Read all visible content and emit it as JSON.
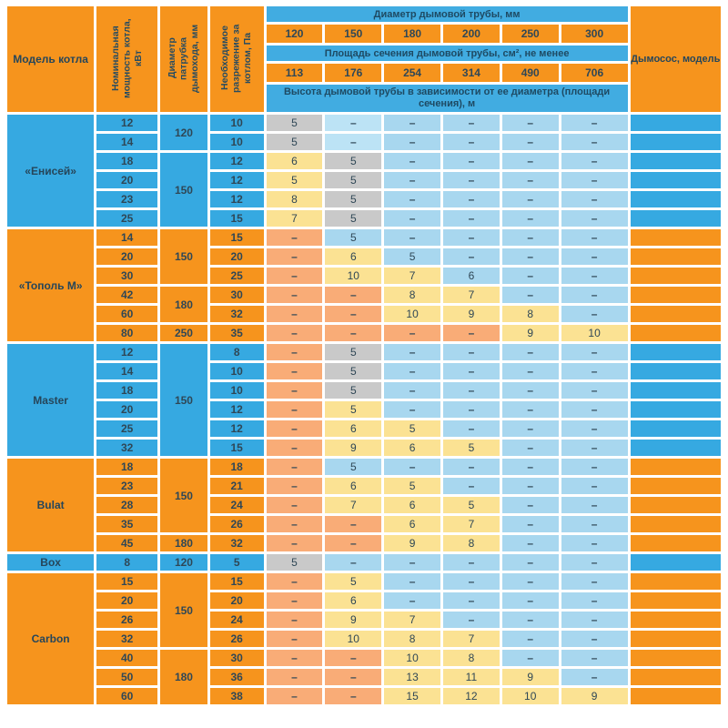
{
  "colors": {
    "orange": "#F6941D",
    "blue": "#36A9E1",
    "banner_blue": "#41ACE1",
    "light_blue": "#A8D7EF",
    "pale_blue": "#BCE3F5",
    "yellow": "#FBE293",
    "grey": "#C9C9C9",
    "light_orange": "#F9AC77"
  },
  "chart_data": {
    "type": "table",
    "header": {
      "col_model": "Модель котла",
      "col_power": "Номинальная мощность котла, кВт",
      "col_duct": "Диаметр патрубка дымохода, мм",
      "col_draft": "Необходимое разрежение за котлом, Па",
      "banner_diameter": "Диаметр дымовой трубы, мм",
      "diameters": [
        "120",
        "150",
        "180",
        "200",
        "250",
        "300"
      ],
      "banner_area": "Площадь сечения дымовой трубы, см², не менее",
      "areas": [
        "113",
        "176",
        "254",
        "314",
        "490",
        "706"
      ],
      "banner_height": "Высота дымовой трубы в зависимости от ее диаметра (площади сечения), м",
      "col_exhauster": "Дымосос, модель"
    },
    "dash": "–",
    "groups": [
      {
        "model": "«Енисей»",
        "color": "blue",
        "rows": [
          {
            "power": "12",
            "duct": "120",
            "duct_span": 2,
            "draft": "10",
            "values": [
              [
                "5",
                "g"
              ],
              [
                "–",
                "bl"
              ],
              [
                "–",
                "b"
              ],
              [
                "–",
                "b"
              ],
              [
                "–",
                "b"
              ],
              [
                "–",
                "b"
              ]
            ]
          },
          {
            "power": "14",
            "draft": "10",
            "values": [
              [
                "5",
                "g"
              ],
              [
                "–",
                "bl"
              ],
              [
                "–",
                "b"
              ],
              [
                "–",
                "b"
              ],
              [
                "–",
                "b"
              ],
              [
                "–",
                "b"
              ]
            ]
          },
          {
            "power": "18",
            "duct": "150",
            "duct_span": 4,
            "draft": "12",
            "values": [
              [
                "6",
                "y"
              ],
              [
                "5",
                "g"
              ],
              [
                "–",
                "b"
              ],
              [
                "–",
                "b"
              ],
              [
                "–",
                "b"
              ],
              [
                "–",
                "b"
              ]
            ]
          },
          {
            "power": "20",
            "draft": "12",
            "values": [
              [
                "5",
                "y"
              ],
              [
                "5",
                "g"
              ],
              [
                "–",
                "b"
              ],
              [
                "–",
                "b"
              ],
              [
                "–",
                "b"
              ],
              [
                "–",
                "b"
              ]
            ]
          },
          {
            "power": "23",
            "draft": "12",
            "values": [
              [
                "8",
                "y"
              ],
              [
                "5",
                "g"
              ],
              [
                "–",
                "b"
              ],
              [
                "–",
                "b"
              ],
              [
                "–",
                "b"
              ],
              [
                "–",
                "b"
              ]
            ]
          },
          {
            "power": "25",
            "draft": "15",
            "values": [
              [
                "7",
                "y"
              ],
              [
                "5",
                "g"
              ],
              [
                "–",
                "b"
              ],
              [
                "–",
                "b"
              ],
              [
                "–",
                "b"
              ],
              [
                "–",
                "b"
              ]
            ]
          }
        ]
      },
      {
        "model": "«Тополь М»",
        "color": "orange",
        "rows": [
          {
            "power": "14",
            "duct": "150",
            "duct_span": 3,
            "draft": "15",
            "values": [
              [
                "–",
                "o"
              ],
              [
                "5",
                "b"
              ],
              [
                "–",
                "b"
              ],
              [
                "–",
                "b"
              ],
              [
                "–",
                "b"
              ],
              [
                "–",
                "b"
              ]
            ]
          },
          {
            "power": "20",
            "draft": "20",
            "values": [
              [
                "–",
                "o"
              ],
              [
                "6",
                "y"
              ],
              [
                "5",
                "b"
              ],
              [
                "–",
                "b"
              ],
              [
                "–",
                "b"
              ],
              [
                "–",
                "b"
              ]
            ]
          },
          {
            "power": "30",
            "draft": "25",
            "values": [
              [
                "–",
                "o"
              ],
              [
                "10",
                "y"
              ],
              [
                "7",
                "y"
              ],
              [
                "6",
                "b"
              ],
              [
                "–",
                "b"
              ],
              [
                "–",
                "b"
              ]
            ]
          },
          {
            "power": "42",
            "duct": "180",
            "duct_span": 2,
            "draft": "30",
            "values": [
              [
                "–",
                "o"
              ],
              [
                "–",
                "o"
              ],
              [
                "8",
                "y"
              ],
              [
                "7",
                "y"
              ],
              [
                "–",
                "b"
              ],
              [
                "–",
                "b"
              ]
            ]
          },
          {
            "power": "60",
            "draft": "32",
            "values": [
              [
                "–",
                "o"
              ],
              [
                "–",
                "o"
              ],
              [
                "10",
                "y"
              ],
              [
                "9",
                "y"
              ],
              [
                "8",
                "y"
              ],
              [
                "–",
                "b"
              ]
            ]
          },
          {
            "power": "80",
            "duct": "250",
            "duct_span": 1,
            "draft": "35",
            "values": [
              [
                "–",
                "o"
              ],
              [
                "–",
                "o"
              ],
              [
                "–",
                "o"
              ],
              [
                "–",
                "o"
              ],
              [
                "9",
                "y"
              ],
              [
                "10",
                "y"
              ]
            ]
          }
        ]
      },
      {
        "model": "Master",
        "color": "blue",
        "rows": [
          {
            "power": "12",
            "duct": "150",
            "duct_span": 6,
            "draft": "8",
            "values": [
              [
                "–",
                "o"
              ],
              [
                "5",
                "g"
              ],
              [
                "–",
                "b"
              ],
              [
                "–",
                "b"
              ],
              [
                "–",
                "b"
              ],
              [
                "–",
                "b"
              ]
            ]
          },
          {
            "power": "14",
            "draft": "10",
            "values": [
              [
                "–",
                "o"
              ],
              [
                "5",
                "g"
              ],
              [
                "–",
                "b"
              ],
              [
                "–",
                "b"
              ],
              [
                "–",
                "b"
              ],
              [
                "–",
                "b"
              ]
            ]
          },
          {
            "power": "18",
            "draft": "10",
            "values": [
              [
                "–",
                "o"
              ],
              [
                "5",
                "g"
              ],
              [
                "–",
                "b"
              ],
              [
                "–",
                "b"
              ],
              [
                "–",
                "b"
              ],
              [
                "–",
                "b"
              ]
            ]
          },
          {
            "power": "20",
            "draft": "12",
            "values": [
              [
                "–",
                "o"
              ],
              [
                "5",
                "y"
              ],
              [
                "–",
                "b"
              ],
              [
                "–",
                "b"
              ],
              [
                "–",
                "b"
              ],
              [
                "–",
                "b"
              ]
            ]
          },
          {
            "power": "25",
            "draft": "12",
            "values": [
              [
                "–",
                "o"
              ],
              [
                "6",
                "y"
              ],
              [
                "5",
                "y"
              ],
              [
                "–",
                "b"
              ],
              [
                "–",
                "b"
              ],
              [
                "–",
                "b"
              ]
            ]
          },
          {
            "power": "32",
            "draft": "15",
            "values": [
              [
                "–",
                "o"
              ],
              [
                "9",
                "y"
              ],
              [
                "6",
                "y"
              ],
              [
                "5",
                "y"
              ],
              [
                "–",
                "b"
              ],
              [
                "–",
                "b"
              ]
            ]
          }
        ]
      },
      {
        "model": "Bulat",
        "color": "orange",
        "rows": [
          {
            "power": "18",
            "duct": "150",
            "duct_span": 4,
            "draft": "18",
            "values": [
              [
                "–",
                "o"
              ],
              [
                "5",
                "b"
              ],
              [
                "–",
                "b"
              ],
              [
                "–",
                "b"
              ],
              [
                "–",
                "b"
              ],
              [
                "–",
                "b"
              ]
            ]
          },
          {
            "power": "23",
            "draft": "21",
            "values": [
              [
                "–",
                "o"
              ],
              [
                "6",
                "y"
              ],
              [
                "5",
                "y"
              ],
              [
                "–",
                "b"
              ],
              [
                "–",
                "b"
              ],
              [
                "–",
                "b"
              ]
            ]
          },
          {
            "power": "28",
            "draft": "24",
            "values": [
              [
                "–",
                "o"
              ],
              [
                "7",
                "y"
              ],
              [
                "6",
                "y"
              ],
              [
                "5",
                "y"
              ],
              [
                "–",
                "b"
              ],
              [
                "–",
                "b"
              ]
            ]
          },
          {
            "power": "35",
            "draft": "26",
            "values": [
              [
                "–",
                "o"
              ],
              [
                "–",
                "o"
              ],
              [
                "6",
                "y"
              ],
              [
                "7",
                "y"
              ],
              [
                "–",
                "b"
              ],
              [
                "–",
                "b"
              ]
            ]
          },
          {
            "power": "45",
            "duct": "180",
            "duct_span": 1,
            "draft": "32",
            "values": [
              [
                "–",
                "o"
              ],
              [
                "–",
                "o"
              ],
              [
                "9",
                "y"
              ],
              [
                "8",
                "y"
              ],
              [
                "–",
                "b"
              ],
              [
                "–",
                "b"
              ]
            ]
          }
        ]
      },
      {
        "model": "Box",
        "color": "blue",
        "rows": [
          {
            "power": "8",
            "duct": "120",
            "duct_span": 1,
            "draft": "5",
            "values": [
              [
                "5",
                "g"
              ],
              [
                "–",
                "b"
              ],
              [
                "–",
                "b"
              ],
              [
                "–",
                "b"
              ],
              [
                "–",
                "b"
              ],
              [
                "–",
                "b"
              ]
            ]
          }
        ]
      },
      {
        "model": "Carbon",
        "color": "orange",
        "rows": [
          {
            "power": "15",
            "duct": "150",
            "duct_span": 4,
            "draft": "15",
            "values": [
              [
                "–",
                "o"
              ],
              [
                "5",
                "y"
              ],
              [
                "–",
                "b"
              ],
              [
                "–",
                "b"
              ],
              [
                "–",
                "b"
              ],
              [
                "–",
                "b"
              ]
            ]
          },
          {
            "power": "20",
            "draft": "20",
            "values": [
              [
                "–",
                "o"
              ],
              [
                "6",
                "y"
              ],
              [
                "–",
                "b"
              ],
              [
                "–",
                "b"
              ],
              [
                "–",
                "b"
              ],
              [
                "–",
                "b"
              ]
            ]
          },
          {
            "power": "26",
            "draft": "24",
            "values": [
              [
                "–",
                "o"
              ],
              [
                "9",
                "y"
              ],
              [
                "7",
                "y"
              ],
              [
                "–",
                "b"
              ],
              [
                "–",
                "b"
              ],
              [
                "–",
                "b"
              ]
            ]
          },
          {
            "power": "32",
            "draft": "26",
            "values": [
              [
                "–",
                "o"
              ],
              [
                "10",
                "y"
              ],
              [
                "8",
                "y"
              ],
              [
                "7",
                "y"
              ],
              [
                "–",
                "b"
              ],
              [
                "–",
                "b"
              ]
            ]
          },
          {
            "power": "40",
            "duct": "180",
            "duct_span": 3,
            "draft": "30",
            "values": [
              [
                "–",
                "o"
              ],
              [
                "–",
                "o"
              ],
              [
                "10",
                "y"
              ],
              [
                "8",
                "y"
              ],
              [
                "–",
                "b"
              ],
              [
                "–",
                "b"
              ]
            ]
          },
          {
            "power": "50",
            "draft": "36",
            "values": [
              [
                "–",
                "o"
              ],
              [
                "–",
                "o"
              ],
              [
                "13",
                "y"
              ],
              [
                "11",
                "y"
              ],
              [
                "9",
                "y"
              ],
              [
                "–",
                "b"
              ]
            ]
          },
          {
            "power": "60",
            "draft": "38",
            "values": [
              [
                "–",
                "o"
              ],
              [
                "–",
                "o"
              ],
              [
                "15",
                "y"
              ],
              [
                "12",
                "y"
              ],
              [
                "10",
                "y"
              ],
              [
                "9",
                "y"
              ]
            ]
          }
        ]
      }
    ]
  }
}
